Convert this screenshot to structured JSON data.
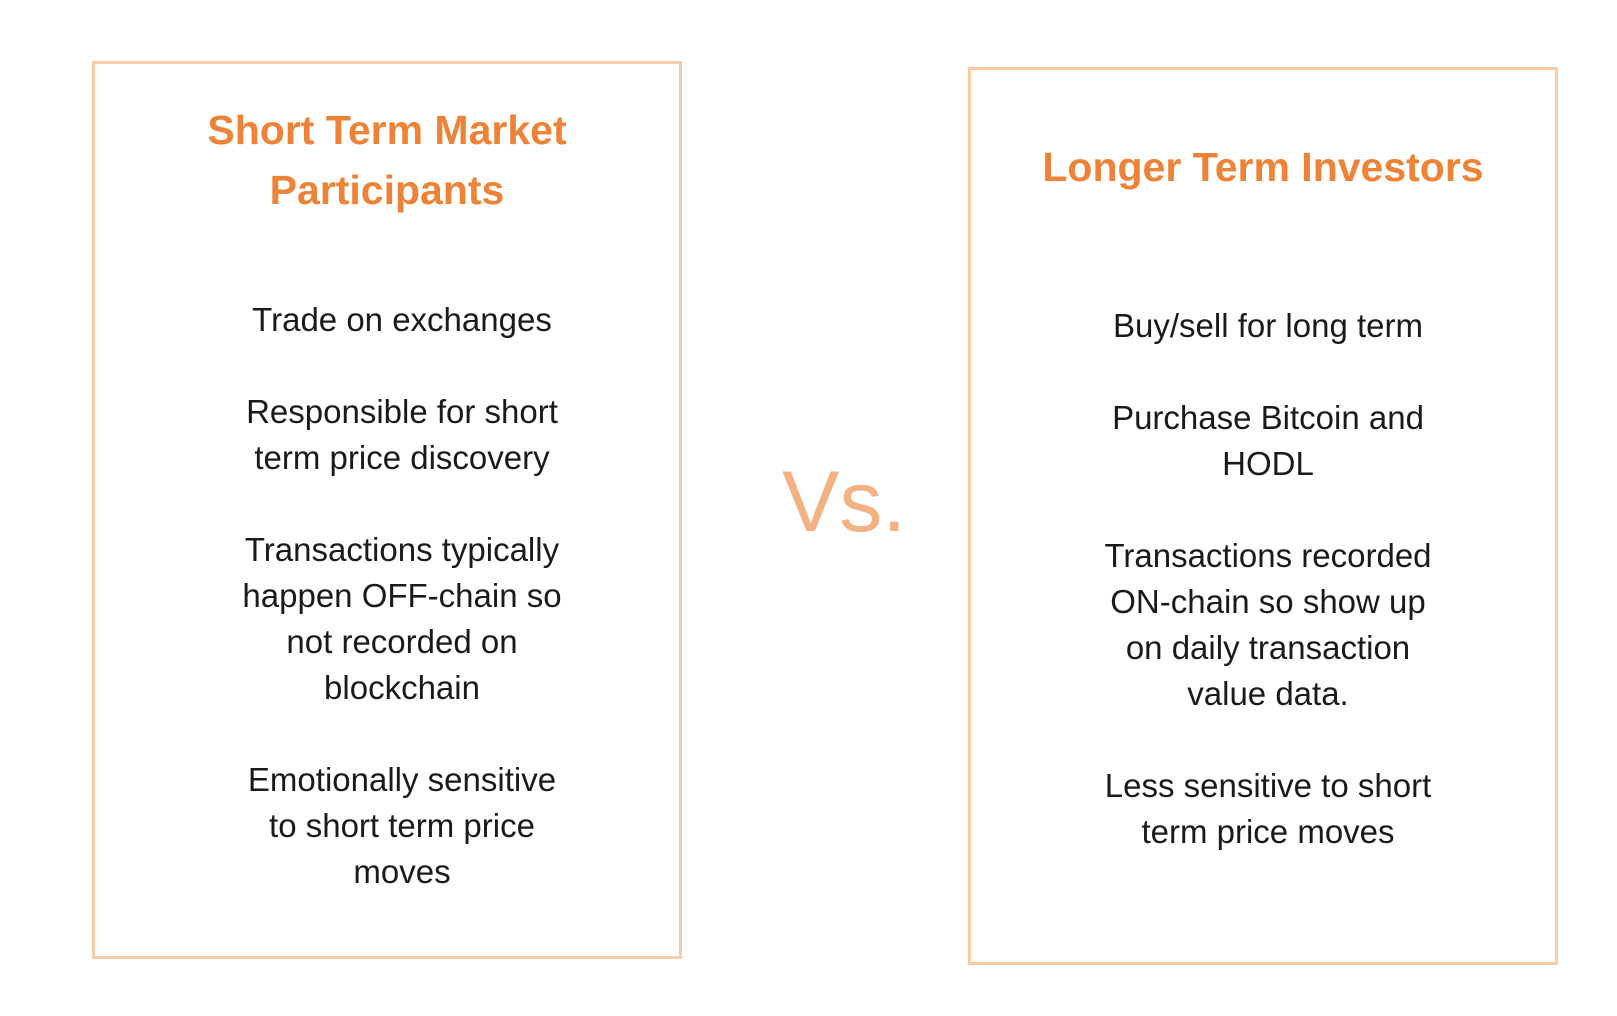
{
  "left_panel": {
    "title": "Short Term Market Participants",
    "points": [
      "Trade on exchanges",
      "Responsible for short term price discovery",
      "Transactions typically happen OFF-chain so not recorded on blockchain",
      "Emotionally sensitive to short term price moves"
    ]
  },
  "vs_label": "Vs.",
  "right_panel": {
    "title": "Longer Term Investors",
    "points": [
      "Buy/sell for long term",
      "Purchase Bitcoin and HODL",
      "Transactions recorded ON-chain so show up on daily transaction value data.",
      "Less sensitive to short term price moves"
    ]
  },
  "colors": {
    "title": "#ee8338",
    "border": "#f7cba8",
    "vs": "#f4b183",
    "text": "#1a1a1a"
  }
}
